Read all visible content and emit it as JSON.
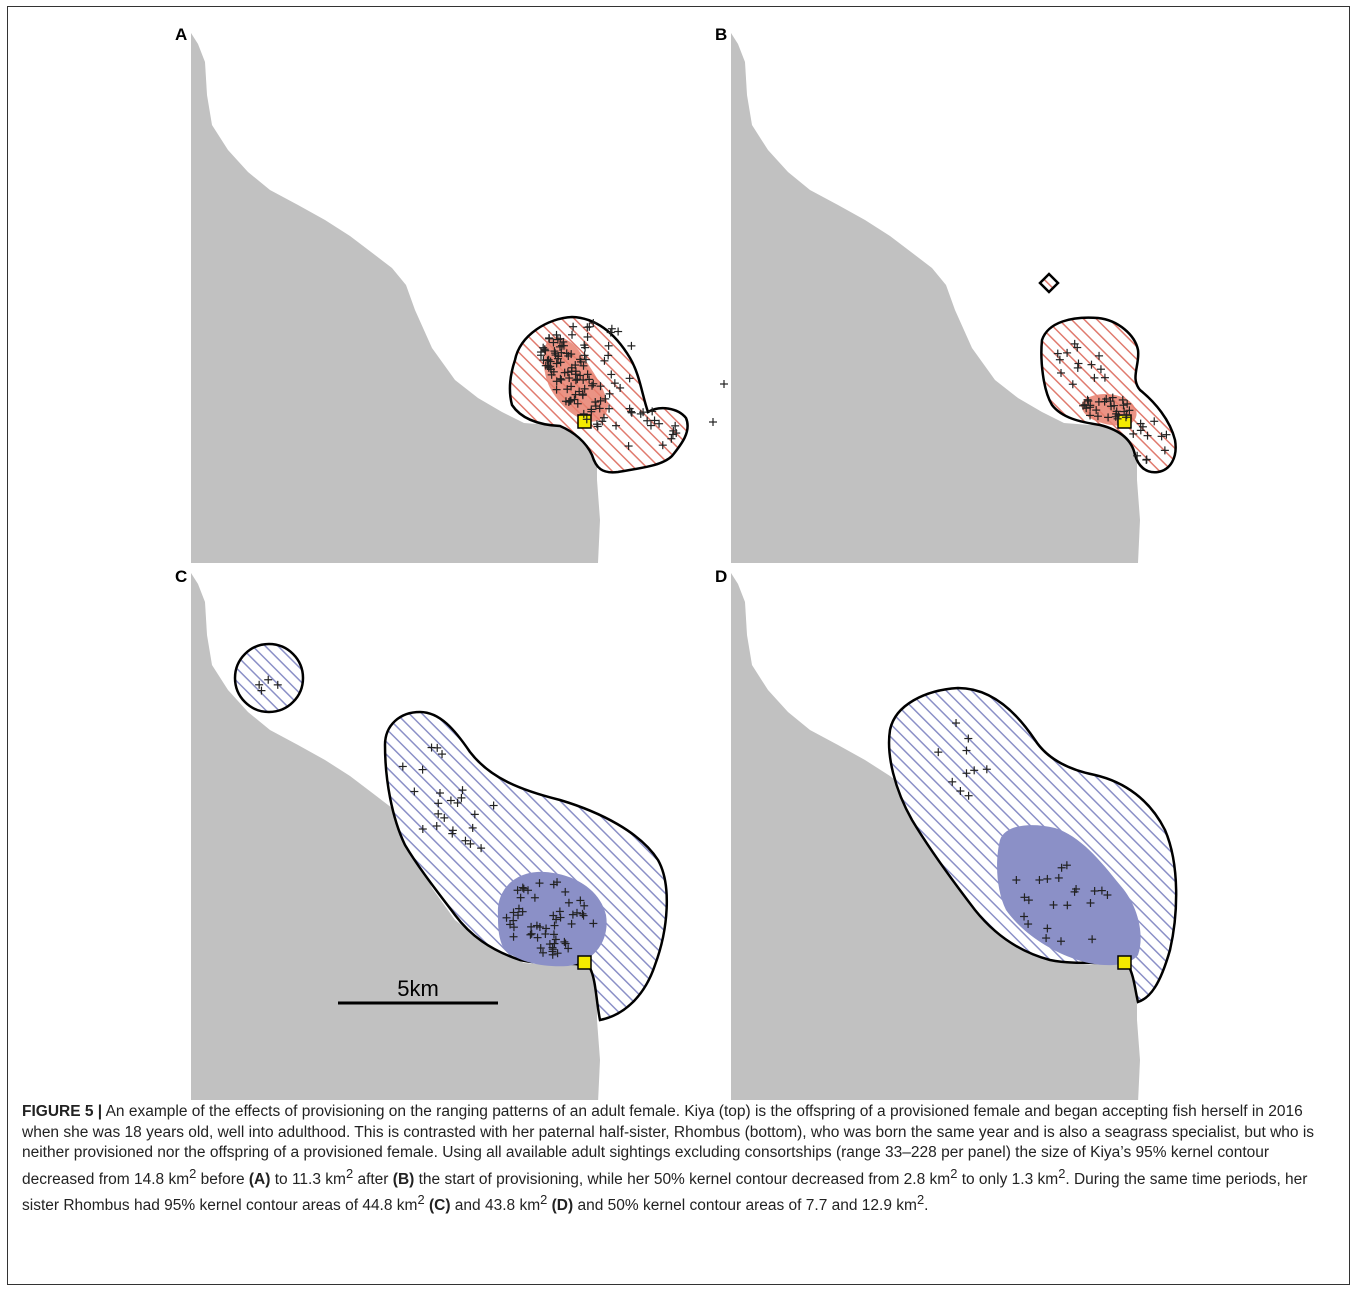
{
  "panels": [
    {
      "label": "A"
    },
    {
      "label": "B"
    },
    {
      "label": "C"
    },
    {
      "label": "D"
    }
  ],
  "scale_bar": {
    "label": "5km"
  },
  "colors": {
    "land": "#c1c1c1",
    "kiya_kernel": "#e8806f",
    "rhombus_kernel": "#8b90c7",
    "provision_site": "#f4ea00",
    "outline": "#000000"
  },
  "caption": {
    "figure_label": "FIGURE 5 |",
    "p1": " An example of the effects of provisioning on the ranging patterns of an adult female. Kiya (top) is the offspring of a provisioned female and began accepting fish herself in 2016 when she was 18 years old, well into adulthood. This is contrasted with her paternal half-sister, Rhombus (bottom), who was born the same year and is also a seagrass specialist, but who is neither provisioned nor the offspring of a provisioned female. Using all available adult sightings excluding consortships (range 33–228 per panel) the size of Kiya’s 95% kernel contour decreased from 14.8 km",
    "p2": " before ",
    "refA": "(A)",
    "p3": " to 11.3 km",
    "p4": " after ",
    "refB": "(B)",
    "p5": " the start of provisioning, while her 50% kernel contour decreased from 2.8 km",
    "p6": " to only 1.3 km",
    "p7": ". During the same time periods, her sister Rhombus had 95% kernel contour areas of 44.8 km",
    "refC": "(C)",
    "p8": " and 43.8 km",
    "refD": "(D)",
    "p9": " and 50% kernel contour areas of 7.7 and 12.9 km",
    "p10": ".",
    "sup": "2"
  }
}
